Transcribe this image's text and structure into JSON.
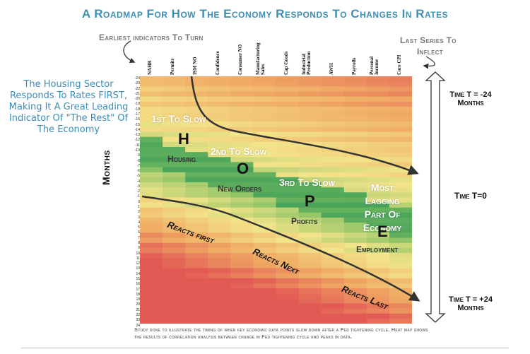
{
  "title": "A Roadmap For How The Economy Responds To Changes In Rates",
  "callouts": {
    "earliest": "Earliest indicators To Turn",
    "last_line1": "Last Series To",
    "last_line2": "Inflect"
  },
  "side_note": "The Housing Sector Responds To Rates FIRST, Making It A Great Leading Indicator Of \"The Rest\" Of The Economy",
  "months_label": "Months",
  "columns": [
    "NAHB",
    "Permits",
    "ISM NO",
    "Confidence",
    "Consumer NO",
    "Manufacturing\nSales",
    "Cap Goods",
    "Industrial\nProduction",
    "AWH",
    "Payrolls",
    "Personal\nIncome",
    "Core CPI"
  ],
  "rows": [
    "-24",
    "-23",
    "-22",
    "-21",
    "-20",
    "-19",
    "-18",
    "-17",
    "-16",
    "-15",
    "-14",
    "-13",
    "-12",
    "-11",
    "-10",
    "-9",
    "-8",
    "-7",
    "-6",
    "-5",
    "-4",
    "-3",
    "-2",
    "-1",
    "0",
    "1",
    "2",
    "3",
    "4",
    "5",
    "6",
    "7",
    "8",
    "9",
    "10",
    "11",
    "12",
    "13",
    "14",
    "15",
    "16",
    "17",
    "18",
    "19",
    "20",
    "21",
    "22",
    "23",
    "24"
  ],
  "stages": {
    "h_title": "1st To Slow",
    "h_letter": "H",
    "h_name": "Housing",
    "o_title": "2nd To Slow",
    "o_letter": "O",
    "o_name": "New Orders",
    "p_title": "3rd To Slow",
    "p_letter": "P",
    "p_name": "Profits",
    "e_title": "Most Lagging Part Of Economy",
    "e_letter": "E",
    "e_name": "Employment"
  },
  "reacts": {
    "first": "Reacts first",
    "next": "Reacts Next",
    "last": "Reacts Last"
  },
  "time": {
    "top_line1": "Time T = -24",
    "top_line2": "Months",
    "mid": "Time T=0",
    "bottom_line1": "Time T = +24",
    "bottom_line2": "Months"
  },
  "footer": "Study done to illustrate the timing of when key economic data points slow down after a Fed tightening cycle. Heat map shows the results of correlation analysis between change in Fed tightening cycle and peaks in data.",
  "colors": {
    "title": "#3f8fb4",
    "green": "#4aa55a",
    "yellow": "#f3e48a",
    "red": "#e25a54"
  }
}
